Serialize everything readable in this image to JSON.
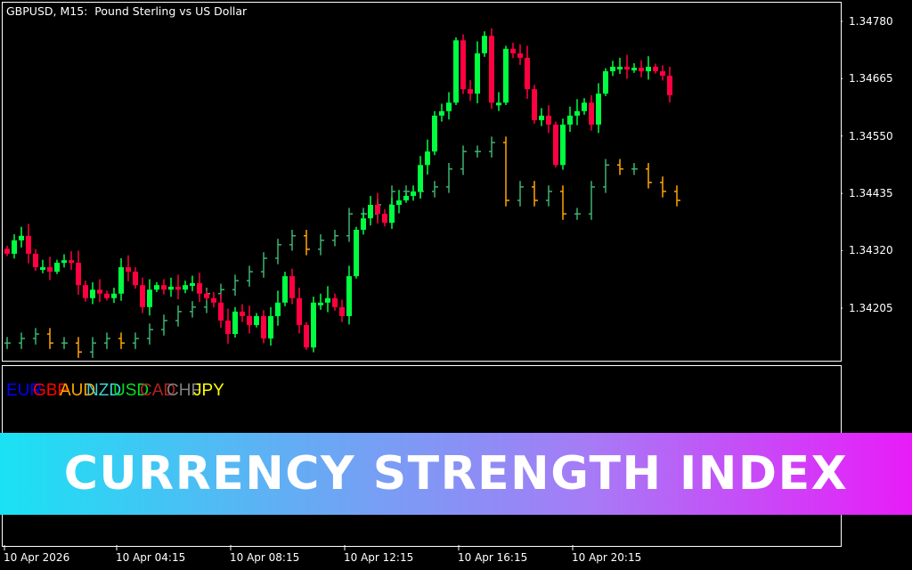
{
  "header": {
    "title": "GBPUSD, M15:  Pound Sterling vs US Dollar"
  },
  "price_axis": [
    "1.34780",
    "1.34665",
    "1.34550",
    "1.34435",
    "1.34320",
    "1.34205"
  ],
  "time_axis": [
    "10 Apr 2026",
    "10 Apr 04:15",
    "10 Apr 08:15",
    "10 Apr 12:15",
    "10 Apr 16:15",
    "10 Apr 20:15"
  ],
  "colors": {
    "bull": "#00ff40",
    "bear": "#ff0040",
    "overlay_up": "#3cb371",
    "overlay_down": "#ffa500",
    "background": "#000000"
  },
  "currencies": [
    {
      "label": "EUR",
      "color": "#0000ff"
    },
    {
      "label": "GBP",
      "color": "#ff0000"
    },
    {
      "label": "AUD",
      "color": "#ffa500"
    },
    {
      "label": "NZD",
      "color": "#40d0d0"
    },
    {
      "label": "USD",
      "color": "#00e020"
    },
    {
      "label": "CAD",
      "color": "#b22222"
    },
    {
      "label": "CHF",
      "color": "#808080"
    },
    {
      "label": "JPY",
      "color": "#ffff00"
    }
  ],
  "banner": {
    "text": "CURRENCY STRENGTH INDEX"
  },
  "chart_data": {
    "type": "candlestick",
    "symbol": "GBPUSD",
    "timeframe": "M15",
    "ylim": [
      1.3411,
      1.3481
    ],
    "closes": [
      1.34314,
      1.34341,
      1.3435,
      1.34314,
      1.34287,
      1.34287,
      1.34278,
      1.34296,
      1.34301,
      1.34296,
      1.34251,
      1.34225,
      1.34242,
      1.34234,
      1.34225,
      1.34234,
      1.34287,
      1.34278,
      1.34251,
      1.34207,
      1.34242,
      1.34251,
      1.34242,
      1.34248,
      1.34242,
      1.34251,
      1.34255,
      1.34234,
      1.34225,
      1.34216,
      1.3418,
      1.34153,
      1.34198,
      1.34189,
      1.34171,
      1.34189,
      1.34144,
      1.34189,
      1.34216,
      1.34269,
      1.34225,
      1.34171,
      1.34126,
      1.34216,
      1.34216,
      1.34225,
      1.34207,
      1.34189,
      1.34269,
      1.34362,
      1.34385,
      1.34412,
      1.34394,
      1.34376,
      1.34412,
      1.34421,
      1.3443,
      1.34439,
      1.34492,
      1.34519,
      1.34591,
      1.346,
      1.34617,
      1.34742,
      1.34644,
      1.34635,
      1.34716,
      1.34751,
      1.34617,
      1.34617,
      1.34725,
      1.34716,
      1.34707,
      1.34644,
      1.34582,
      1.34591,
      1.34573,
      1.34492,
      1.34573,
      1.34591,
      1.346,
      1.34617,
      1.34573,
      1.34635,
      1.3468,
      1.34689,
      1.34689,
      1.34684,
      1.34687,
      1.3468,
      1.34689,
      1.3468,
      1.34671,
      1.34632
    ],
    "overlay": [
      1.34135,
      1.34144,
      1.34153,
      1.34135,
      1.34135,
      1.34117,
      1.34135,
      1.34144,
      1.34135,
      1.34144,
      1.34162,
      1.3418,
      1.34198,
      1.34207,
      1.34234,
      1.34242,
      1.3426,
      1.34278,
      1.34305,
      1.34332,
      1.3435,
      1.34323,
      1.34341,
      1.3435,
      1.34394,
      1.34394,
      1.34412,
      1.34439,
      1.34439,
      1.34439,
      1.34448,
      1.34484,
      1.34519,
      1.34519,
      1.34537,
      1.34421,
      1.34448,
      1.34421,
      1.34439,
      1.34394,
      1.34394,
      1.34448,
      1.34492,
      1.34484,
      1.34484,
      1.34457,
      1.34439,
      1.34421
    ]
  }
}
